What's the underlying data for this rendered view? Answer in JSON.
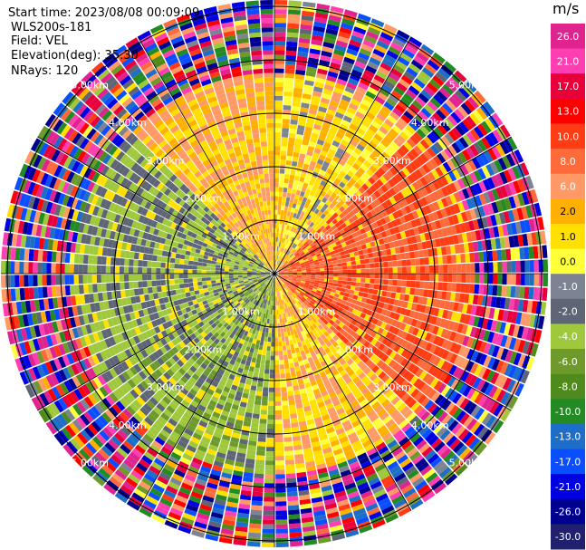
{
  "info": {
    "start_time": "Start time: 2023/08/08 00:09:09",
    "device": "WLS200s-181",
    "field": "Field: VEL",
    "elevation": "Elevation(deg): 35.30",
    "nrays": "NRays: 120"
  },
  "legend": {
    "unit": "m/s",
    "ticks": [
      "26.0",
      "21.0",
      "17.0",
      "13.0",
      "10.0",
      "8.0",
      "6.0",
      "2.0",
      "1.0",
      "0.0",
      "-1.0",
      "-2.0",
      "-4.0",
      "-6.0",
      "-8.0",
      "-10.0",
      "-13.0",
      "-17.0",
      "-21.0",
      "-26.0",
      "-30.0"
    ],
    "colors": [
      "#e0248f",
      "#ff3eb2",
      "#e8003a",
      "#ff0000",
      "#ff3c14",
      "#ff6a3a",
      "#ff9a66",
      "#ffb000",
      "#ffe000",
      "#ffff3a",
      "#7c8494",
      "#5e6676",
      "#a0c83c",
      "#6e9a2c",
      "#4e8a1c",
      "#248a24",
      "#1e6ec8",
      "#0a4eff",
      "#0000e0",
      "#000090",
      "#20206e"
    ]
  },
  "chart_data": {
    "type": "heatmap",
    "projection": "polar PPI",
    "field": "VEL",
    "units": "m/s",
    "nrays": 120,
    "range_rings_km": [
      1.0,
      2.0,
      3.0,
      4.0,
      5.0
    ],
    "range_ring_labels": [
      "1.00km",
      "2.00km",
      "3.00km",
      "4.00km",
      "5.00km"
    ],
    "colorbar_range": [
      -30.0,
      26.0
    ],
    "sectors": [
      {
        "azimuth_deg": [
          0,
          45
        ],
        "velocity_ms": 0.5
      },
      {
        "azimuth_deg": [
          45,
          135
        ],
        "velocity_ms": 8.0
      },
      {
        "azimuth_deg": [
          135,
          180
        ],
        "velocity_ms": 1.5
      },
      {
        "azimuth_deg": [
          180,
          235
        ],
        "velocity_ms": -5.0
      },
      {
        "azimuth_deg": [
          235,
          315
        ],
        "velocity_ms": -4.0
      },
      {
        "azimuth_deg": [
          315,
          360
        ],
        "velocity_ms": 2.0
      }
    ],
    "outer_noise_beyond_km": 3.8
  }
}
